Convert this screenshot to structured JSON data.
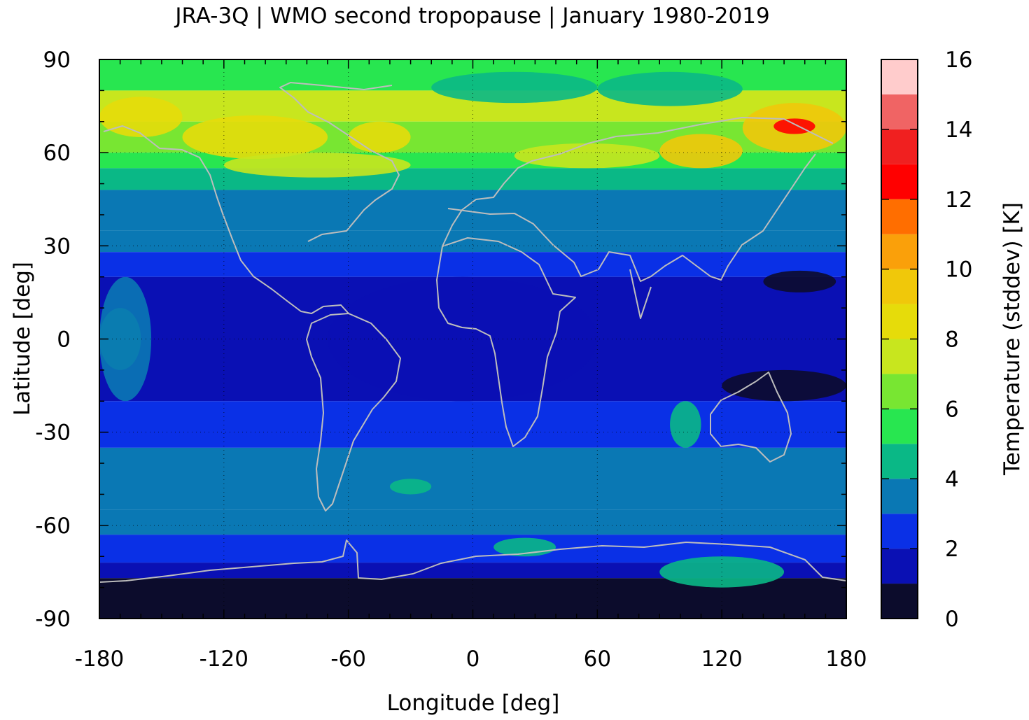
{
  "chart_data": {
    "type": "heatmap",
    "title": "JRA-3Q | WMO second tropopause | January 1980-2019",
    "xlabel": "Longitude [deg]",
    "ylabel": "Latitude [deg]",
    "colorbar_label": "Temperature (stddev) [K]",
    "xlim": [
      -180,
      180
    ],
    "ylim": [
      -90,
      90
    ],
    "xticks": [
      -180,
      -120,
      -60,
      0,
      60,
      120,
      180
    ],
    "yticks": [
      -90,
      -60,
      -30,
      0,
      30,
      60,
      90
    ],
    "colorbar_ticks": [
      0,
      2,
      4,
      6,
      8,
      10,
      12,
      14,
      16
    ],
    "colorbar_range": [
      0,
      16
    ],
    "grid": true,
    "colorbar_placement": "right",
    "colorbar_levels": [
      {
        "from": 0,
        "to": 1,
        "color": "#0c0c2c"
      },
      {
        "from": 1,
        "to": 2,
        "color": "#0a10b4"
      },
      {
        "from": 2,
        "to": 3,
        "color": "#0a30e6"
      },
      {
        "from": 3,
        "to": 4,
        "color": "#0a78b4"
      },
      {
        "from": 4,
        "to": 5,
        "color": "#0ab886"
      },
      {
        "from": 5,
        "to": 6,
        "color": "#28e650"
      },
      {
        "from": 6,
        "to": 7,
        "color": "#78e632"
      },
      {
        "from": 7,
        "to": 8,
        "color": "#c8e61e"
      },
      {
        "from": 8,
        "to": 9,
        "color": "#e6dc0a"
      },
      {
        "from": 9,
        "to": 10,
        "color": "#f0c80a"
      },
      {
        "from": 10,
        "to": 11,
        "color": "#faa00a"
      },
      {
        "from": 11,
        "to": 12,
        "color": "#ff6e00"
      },
      {
        "from": 12,
        "to": 13,
        "color": "#ff0000"
      },
      {
        "from": 13,
        "to": 14,
        "color": "#f02020"
      },
      {
        "from": 14,
        "to": 15,
        "color": "#f06464"
      },
      {
        "from": 15,
        "to": 16,
        "color": "#ffcccc"
      }
    ],
    "zonal_bands": [
      {
        "lat_from": 80,
        "lat_to": 90,
        "value": 5.5
      },
      {
        "lat_from": 70,
        "lat_to": 80,
        "value": 7.0
      },
      {
        "lat_from": 60,
        "lat_to": 70,
        "value": 6.5
      },
      {
        "lat_from": 55,
        "lat_to": 60,
        "value": 5.5
      },
      {
        "lat_from": 48,
        "lat_to": 55,
        "value": 4.5
      },
      {
        "lat_from": 35,
        "lat_to": 48,
        "value": 3.5
      },
      {
        "lat_from": 28,
        "lat_to": 35,
        "value": 3.5
      },
      {
        "lat_from": 20,
        "lat_to": 28,
        "value": 2.5
      },
      {
        "lat_from": -20,
        "lat_to": 20,
        "value": 1.5
      },
      {
        "lat_from": -35,
        "lat_to": -20,
        "value": 2.5
      },
      {
        "lat_from": -55,
        "lat_to": -35,
        "value": 3.5
      },
      {
        "lat_from": -63,
        "lat_to": -55,
        "value": 3.5
      },
      {
        "lat_from": -72,
        "lat_to": -63,
        "value": 2.5
      },
      {
        "lat_from": -77,
        "lat_to": -72,
        "value": 1.5
      },
      {
        "lat_from": -90,
        "lat_to": -77,
        "value": 0.5
      }
    ],
    "anomalies": [
      {
        "lon_from": -180,
        "lon_to": -140,
        "lat_from": 65,
        "lat_to": 78,
        "value": 8.5
      },
      {
        "lon_from": -140,
        "lon_to": -70,
        "lat_from": 58,
        "lat_to": 72,
        "value": 8.5
      },
      {
        "lon_from": -120,
        "lon_to": -30,
        "lat_from": 52,
        "lat_to": 60,
        "value": 7.5
      },
      {
        "lon_from": -60,
        "lon_to": -30,
        "lat_from": 60,
        "lat_to": 70,
        "value": 8.5
      },
      {
        "lon_from": 20,
        "lon_to": 90,
        "lat_from": 55,
        "lat_to": 63,
        "value": 7.5
      },
      {
        "lon_from": 90,
        "lon_to": 130,
        "lat_from": 55,
        "lat_to": 66,
        "value": 9.5
      },
      {
        "lon_from": 130,
        "lon_to": 180,
        "lat_from": 60,
        "lat_to": 76,
        "value": 9.5
      },
      {
        "lon_from": 145,
        "lon_to": 165,
        "lat_from": 66,
        "lat_to": 71,
        "value": 12.5
      },
      {
        "lon_from": -20,
        "lon_to": 60,
        "lat_from": 76,
        "lat_to": 86,
        "value": 4.5
      },
      {
        "lon_from": 60,
        "lon_to": 130,
        "lat_from": 75,
        "lat_to": 86,
        "value": 4.5
      },
      {
        "lon_from": -180,
        "lon_to": -160,
        "lat_from": -10,
        "lat_to": 10,
        "value": 4.5
      },
      {
        "lon_from": -180,
        "lon_to": -155,
        "lat_from": -20,
        "lat_to": 20,
        "value": 3.5
      },
      {
        "lon_from": -70,
        "lon_to": 60,
        "lat_from": -20,
        "lat_to": 20,
        "value": 1.5
      },
      {
        "lon_from": 120,
        "lon_to": 180,
        "lat_from": -20,
        "lat_to": -10,
        "value": 0.5
      },
      {
        "lon_from": 140,
        "lon_to": 175,
        "lat_from": 15,
        "lat_to": 22,
        "value": 0.5
      },
      {
        "lon_from": 95,
        "lon_to": 110,
        "lat_from": -35,
        "lat_to": -20,
        "value": 4.5
      },
      {
        "lon_from": -40,
        "lon_to": -20,
        "lat_from": -50,
        "lat_to": -45,
        "value": 4.5
      },
      {
        "lon_from": 90,
        "lon_to": 150,
        "lat_from": -80,
        "lat_to": -70,
        "value": 4.5
      },
      {
        "lon_from": 10,
        "lon_to": 40,
        "lat_from": -70,
        "lat_to": -64,
        "value": 4.5
      }
    ]
  }
}
